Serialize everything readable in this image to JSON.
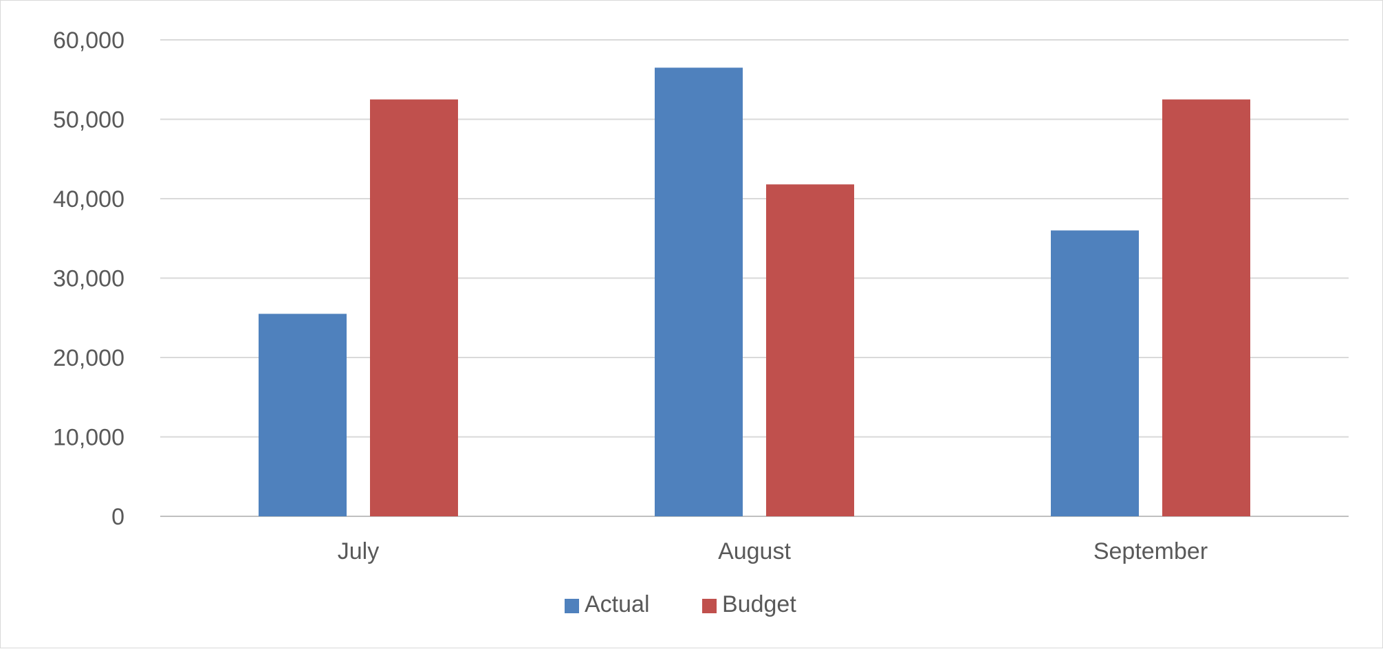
{
  "chart_data": {
    "type": "bar",
    "title": "",
    "xlabel": "",
    "ylabel": "",
    "categories": [
      "July",
      "August",
      "September"
    ],
    "series": [
      {
        "name": "Actual",
        "color": "#4F81BD",
        "values": [
          25500,
          56500,
          36000
        ]
      },
      {
        "name": "Budget",
        "color": "#C0504D",
        "values": [
          52500,
          41800,
          52500
        ]
      }
    ],
    "ylim": [
      0,
      60000
    ],
    "yticks": [
      0,
      10000,
      20000,
      30000,
      40000,
      50000,
      60000
    ],
    "ytick_labels": [
      "0",
      "10,000",
      "20,000",
      "30,000",
      "40,000",
      "50,000",
      "60,000"
    ],
    "grid": true,
    "legend_position": "bottom",
    "legend": [
      {
        "label": "Actual",
        "color": "#4F81BD"
      },
      {
        "label": "Budget",
        "color": "#C0504D"
      }
    ]
  }
}
